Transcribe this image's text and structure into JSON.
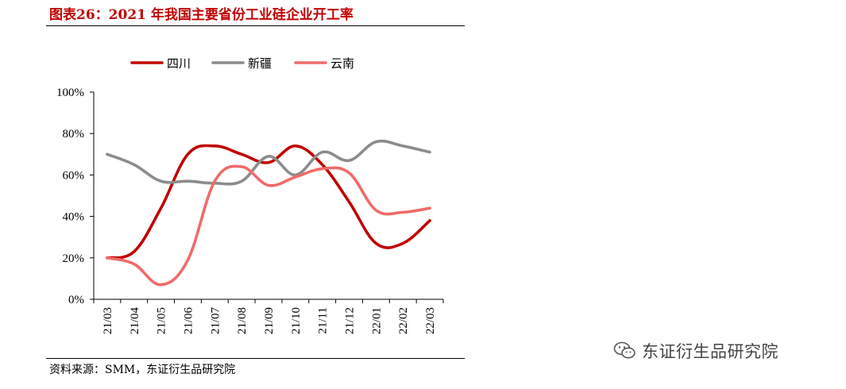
{
  "title": "图表26：2021 年我国主要省份工业硅企业开工率",
  "source": "资料来源：SMM，东证衍生品研究院",
  "watermark": "东证衍生品研究院",
  "chart_data": {
    "type": "line",
    "title": "图表26：2021 年我国主要省份工业硅企业开工率",
    "x": [
      "21/03",
      "21/04",
      "21/05",
      "21/06",
      "21/07",
      "21/08",
      "21/09",
      "21/10",
      "21/11",
      "21/12",
      "22/01",
      "22/02",
      "22/03"
    ],
    "y_ticks": [
      "0%",
      "20%",
      "40%",
      "60%",
      "80%",
      "100%"
    ],
    "ylim": [
      0,
      100
    ],
    "legend_position": "top",
    "series": [
      {
        "name": "四川",
        "color": "#c00000",
        "values": [
          20,
          23,
          44,
          70,
          74,
          70,
          66,
          74,
          65,
          47,
          27,
          27,
          38
        ]
      },
      {
        "name": "新疆",
        "color": "#8c8c8c",
        "values": [
          70,
          65,
          57,
          57,
          56,
          57,
          69,
          60,
          71,
          67,
          76,
          74,
          71
        ]
      },
      {
        "name": "云南",
        "color": "#f06b6b",
        "values": [
          20,
          17,
          7,
          19,
          57,
          64,
          55,
          59,
          63,
          61,
          43,
          42,
          44
        ]
      }
    ]
  }
}
